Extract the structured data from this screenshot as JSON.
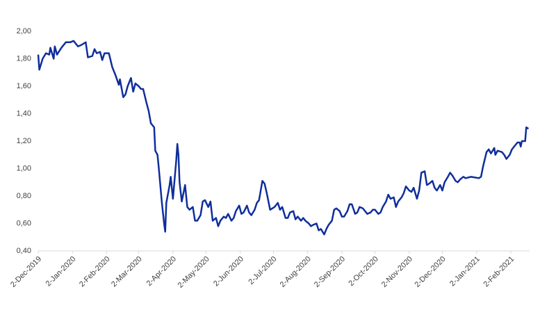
{
  "chart_data": {
    "type": "line",
    "xlim": [
      "2019-12-02",
      "2021-02-19"
    ],
    "xticks": [
      {
        "value": "2019-12-02",
        "label": "2-Dec-2019"
      },
      {
        "value": "2020-01-02",
        "label": "2-Jan-2020"
      },
      {
        "value": "2020-02-02",
        "label": "2-Feb-2020"
      },
      {
        "value": "2020-03-02",
        "label": "2-Mar-2020"
      },
      {
        "value": "2020-04-02",
        "label": "2-Apr-2020"
      },
      {
        "value": "2020-05-02",
        "label": "2-May-2020"
      },
      {
        "value": "2020-06-02",
        "label": "2-Jun-2020"
      },
      {
        "value": "2020-07-02",
        "label": "2-Jul-2020"
      },
      {
        "value": "2020-08-02",
        "label": "2-Aug-2020"
      },
      {
        "value": "2020-09-02",
        "label": "2-Sep-2020"
      },
      {
        "value": "2020-10-02",
        "label": "2-Oct-2020"
      },
      {
        "value": "2020-11-02",
        "label": "2-Nov-2020"
      },
      {
        "value": "2020-12-02",
        "label": "2-Dec-2020"
      },
      {
        "value": "2021-01-02",
        "label": "2-Jan-2021"
      },
      {
        "value": "2021-02-02",
        "label": "2-Feb-2021"
      }
    ],
    "ylim": [
      0.4,
      2.0
    ],
    "yticks": [
      {
        "value": 0.4,
        "label": "0,40"
      },
      {
        "value": 0.6,
        "label": "0,60"
      },
      {
        "value": 0.8,
        "label": "0,80"
      },
      {
        "value": 1.0,
        "label": "1,00"
      },
      {
        "value": 1.2,
        "label": "1,20"
      },
      {
        "value": 1.4,
        "label": "1,40"
      },
      {
        "value": 1.6,
        "label": "1,60"
      },
      {
        "value": 1.8,
        "label": "1,80"
      },
      {
        "value": 2.0,
        "label": "2,00"
      }
    ],
    "grid": false,
    "color": "#0f2e9b",
    "x": [
      "2019-12-02",
      "2019-12-03",
      "2019-12-06",
      "2019-12-09",
      "2019-12-12",
      "2019-12-13",
      "2019-12-16",
      "2019-12-17",
      "2019-12-19",
      "2019-12-23",
      "2019-12-27",
      "2019-12-31",
      "2020-01-03",
      "2020-01-07",
      "2020-01-10",
      "2020-01-14",
      "2020-01-16",
      "2020-01-20",
      "2020-01-22",
      "2020-01-24",
      "2020-01-27",
      "2020-01-29",
      "2020-01-31",
      "2020-02-04",
      "2020-02-07",
      "2020-02-10",
      "2020-02-13",
      "2020-02-14",
      "2020-02-17",
      "2020-02-19",
      "2020-02-21",
      "2020-02-24",
      "2020-02-26",
      "2020-02-28",
      "2020-03-02",
      "2020-03-04",
      "2020-03-06",
      "2020-03-09",
      "2020-03-11",
      "2020-03-13",
      "2020-03-16",
      "2020-03-17",
      "2020-03-19",
      "2020-03-20",
      "2020-03-23",
      "2020-03-25",
      "2020-03-26",
      "2020-03-27",
      "2020-03-30",
      "2020-03-31",
      "2020-04-02",
      "2020-04-05",
      "2020-04-06",
      "2020-04-07",
      "2020-04-08",
      "2020-04-10",
      "2020-04-13",
      "2020-04-15",
      "2020-04-17",
      "2020-04-20",
      "2020-04-22",
      "2020-04-24",
      "2020-04-27",
      "2020-04-29",
      "2020-05-01",
      "2020-05-04",
      "2020-05-06",
      "2020-05-08",
      "2020-05-11",
      "2020-05-13",
      "2020-05-15",
      "2020-05-18",
      "2020-05-20",
      "2020-05-22",
      "2020-05-25",
      "2020-05-27",
      "2020-05-29",
      "2020-06-01",
      "2020-06-03",
      "2020-06-05",
      "2020-06-08",
      "2020-06-10",
      "2020-06-12",
      "2020-06-15",
      "2020-06-17",
      "2020-06-19",
      "2020-06-22",
      "2020-06-24",
      "2020-06-26",
      "2020-06-29",
      "2020-07-01",
      "2020-07-03",
      "2020-07-06",
      "2020-07-08",
      "2020-07-10",
      "2020-07-13",
      "2020-07-15",
      "2020-07-17",
      "2020-07-20",
      "2020-07-22",
      "2020-07-24",
      "2020-07-27",
      "2020-07-29",
      "2020-07-31",
      "2020-08-03",
      "2020-08-05",
      "2020-08-07",
      "2020-08-10",
      "2020-08-12",
      "2020-08-14",
      "2020-08-17",
      "2020-08-19",
      "2020-08-21",
      "2020-08-24",
      "2020-08-26",
      "2020-08-28",
      "2020-08-31",
      "2020-09-02",
      "2020-09-04",
      "2020-09-07",
      "2020-09-09",
      "2020-09-11",
      "2020-09-14",
      "2020-09-16",
      "2020-09-18",
      "2020-09-21",
      "2020-09-23",
      "2020-09-25",
      "2020-09-28",
      "2020-09-30",
      "2020-10-02",
      "2020-10-05",
      "2020-10-07",
      "2020-10-09",
      "2020-10-12",
      "2020-10-14",
      "2020-10-16",
      "2020-10-19",
      "2020-10-21",
      "2020-10-23",
      "2020-10-26",
      "2020-10-28",
      "2020-10-30",
      "2020-11-02",
      "2020-11-04",
      "2020-11-06",
      "2020-11-09",
      "2020-11-11",
      "2020-11-13",
      "2020-11-16",
      "2020-11-18",
      "2020-11-20",
      "2020-11-23",
      "2020-11-25",
      "2020-11-27",
      "2020-11-30",
      "2020-12-02",
      "2020-12-04",
      "2020-12-07",
      "2020-12-09",
      "2020-12-11",
      "2020-12-14",
      "2020-12-16",
      "2020-12-18",
      "2020-12-21",
      "2020-12-23",
      "2020-12-28",
      "2021-01-04",
      "2021-01-06",
      "2021-01-08",
      "2021-01-11",
      "2021-01-13",
      "2021-01-15",
      "2021-01-18",
      "2021-01-19",
      "2021-01-21",
      "2021-01-25",
      "2021-01-27",
      "2021-01-29",
      "2021-02-01",
      "2021-02-03",
      "2021-02-05",
      "2021-02-08",
      "2021-02-10",
      "2021-02-11",
      "2021-02-12",
      "2021-02-15",
      "2021-02-16",
      "2021-02-18"
    ],
    "values": [
      1.83,
      1.72,
      1.8,
      1.84,
      1.83,
      1.88,
      1.8,
      1.89,
      1.83,
      1.88,
      1.92,
      1.92,
      1.93,
      1.89,
      1.9,
      1.92,
      1.81,
      1.82,
      1.87,
      1.84,
      1.85,
      1.79,
      1.84,
      1.84,
      1.74,
      1.68,
      1.61,
      1.65,
      1.52,
      1.54,
      1.6,
      1.66,
      1.56,
      1.62,
      1.6,
      1.58,
      1.58,
      1.48,
      1.42,
      1.33,
      1.3,
      1.13,
      1.1,
      1.02,
      0.75,
      0.6,
      0.54,
      0.75,
      0.88,
      0.94,
      0.78,
      1.06,
      1.18,
      1.1,
      0.9,
      0.76,
      0.88,
      0.72,
      0.7,
      0.72,
      0.62,
      0.62,
      0.66,
      0.76,
      0.77,
      0.72,
      0.76,
      0.62,
      0.64,
      0.58,
      0.62,
      0.65,
      0.64,
      0.67,
      0.62,
      0.64,
      0.69,
      0.73,
      0.67,
      0.68,
      0.73,
      0.68,
      0.66,
      0.7,
      0.75,
      0.77,
      0.91,
      0.89,
      0.82,
      0.7,
      0.71,
      0.72,
      0.75,
      0.7,
      0.72,
      0.64,
      0.64,
      0.68,
      0.69,
      0.63,
      0.65,
      0.62,
      0.64,
      0.62,
      0.6,
      0.58,
      0.59,
      0.6,
      0.55,
      0.56,
      0.52,
      0.56,
      0.59,
      0.62,
      0.7,
      0.71,
      0.69,
      0.65,
      0.65,
      0.69,
      0.74,
      0.74,
      0.67,
      0.68,
      0.72,
      0.71,
      0.69,
      0.67,
      0.68,
      0.7,
      0.7,
      0.67,
      0.68,
      0.72,
      0.76,
      0.81,
      0.78,
      0.79,
      0.72,
      0.76,
      0.79,
      0.82,
      0.87,
      0.84,
      0.83,
      0.86,
      0.78,
      0.84,
      0.97,
      0.98,
      0.88,
      0.89,
      0.91,
      0.86,
      0.84,
      0.88,
      0.84,
      0.9,
      0.94,
      0.97,
      0.95,
      0.91,
      0.9,
      0.92,
      0.94,
      0.93,
      0.94,
      0.93,
      0.94,
      1.02,
      1.12,
      1.14,
      1.11,
      1.15,
      1.1,
      1.13,
      1.12,
      1.1,
      1.07,
      1.1,
      1.14,
      1.16,
      1.19,
      1.19,
      1.16,
      1.2,
      1.2,
      1.3,
      1.29
    ]
  }
}
